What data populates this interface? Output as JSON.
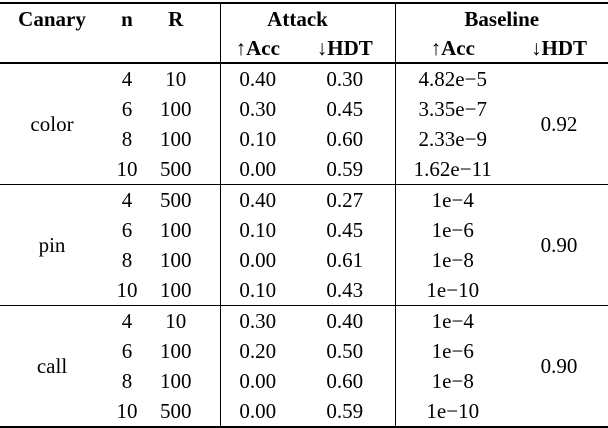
{
  "table": {
    "header": {
      "canary": "Canary",
      "n": "n",
      "r": "R",
      "attack": "Attack",
      "baseline": "Baseline",
      "attack_acc": "↑Acc",
      "attack_hdt": "↓HDT",
      "baseline_acc": "↑Acc",
      "baseline_hdt": "↓HDT"
    },
    "groups": [
      {
        "canary": "color",
        "baseline_hdt": "0.92",
        "rows": [
          {
            "n": "4",
            "r": "10",
            "acc": "0.40",
            "hdt": "0.30",
            "b_acc": "4.82e−5"
          },
          {
            "n": "6",
            "r": "100",
            "acc": "0.30",
            "hdt": "0.45",
            "b_acc": "3.35e−7"
          },
          {
            "n": "8",
            "r": "100",
            "acc": "0.10",
            "hdt": "0.60",
            "b_acc": "2.33e−9"
          },
          {
            "n": "10",
            "r": "500",
            "acc": "0.00",
            "hdt": "0.59",
            "b_acc": "1.62e−11"
          }
        ]
      },
      {
        "canary": "pin",
        "baseline_hdt": "0.90",
        "rows": [
          {
            "n": "4",
            "r": "500",
            "acc": "0.40",
            "hdt": "0.27",
            "b_acc": "1e−4"
          },
          {
            "n": "6",
            "r": "100",
            "acc": "0.10",
            "hdt": "0.45",
            "b_acc": "1e−6"
          },
          {
            "n": "8",
            "r": "100",
            "acc": "0.00",
            "hdt": "0.61",
            "b_acc": "1e−8"
          },
          {
            "n": "10",
            "r": "100",
            "acc": "0.10",
            "hdt": "0.43",
            "b_acc": "1e−10"
          }
        ]
      },
      {
        "canary": "call",
        "baseline_hdt": "0.90",
        "rows": [
          {
            "n": "4",
            "r": "10",
            "acc": "0.30",
            "hdt": "0.40",
            "b_acc": "1e−4"
          },
          {
            "n": "6",
            "r": "100",
            "acc": "0.20",
            "hdt": "0.50",
            "b_acc": "1e−6"
          },
          {
            "n": "8",
            "r": "100",
            "acc": "0.00",
            "hdt": "0.60",
            "b_acc": "1e−8"
          },
          {
            "n": "10",
            "r": "500",
            "acc": "0.00",
            "hdt": "0.59",
            "b_acc": "1e−10"
          }
        ]
      }
    ],
    "colors": {
      "text": "#000000",
      "background": "#ffffff",
      "rule": "#000000"
    }
  }
}
